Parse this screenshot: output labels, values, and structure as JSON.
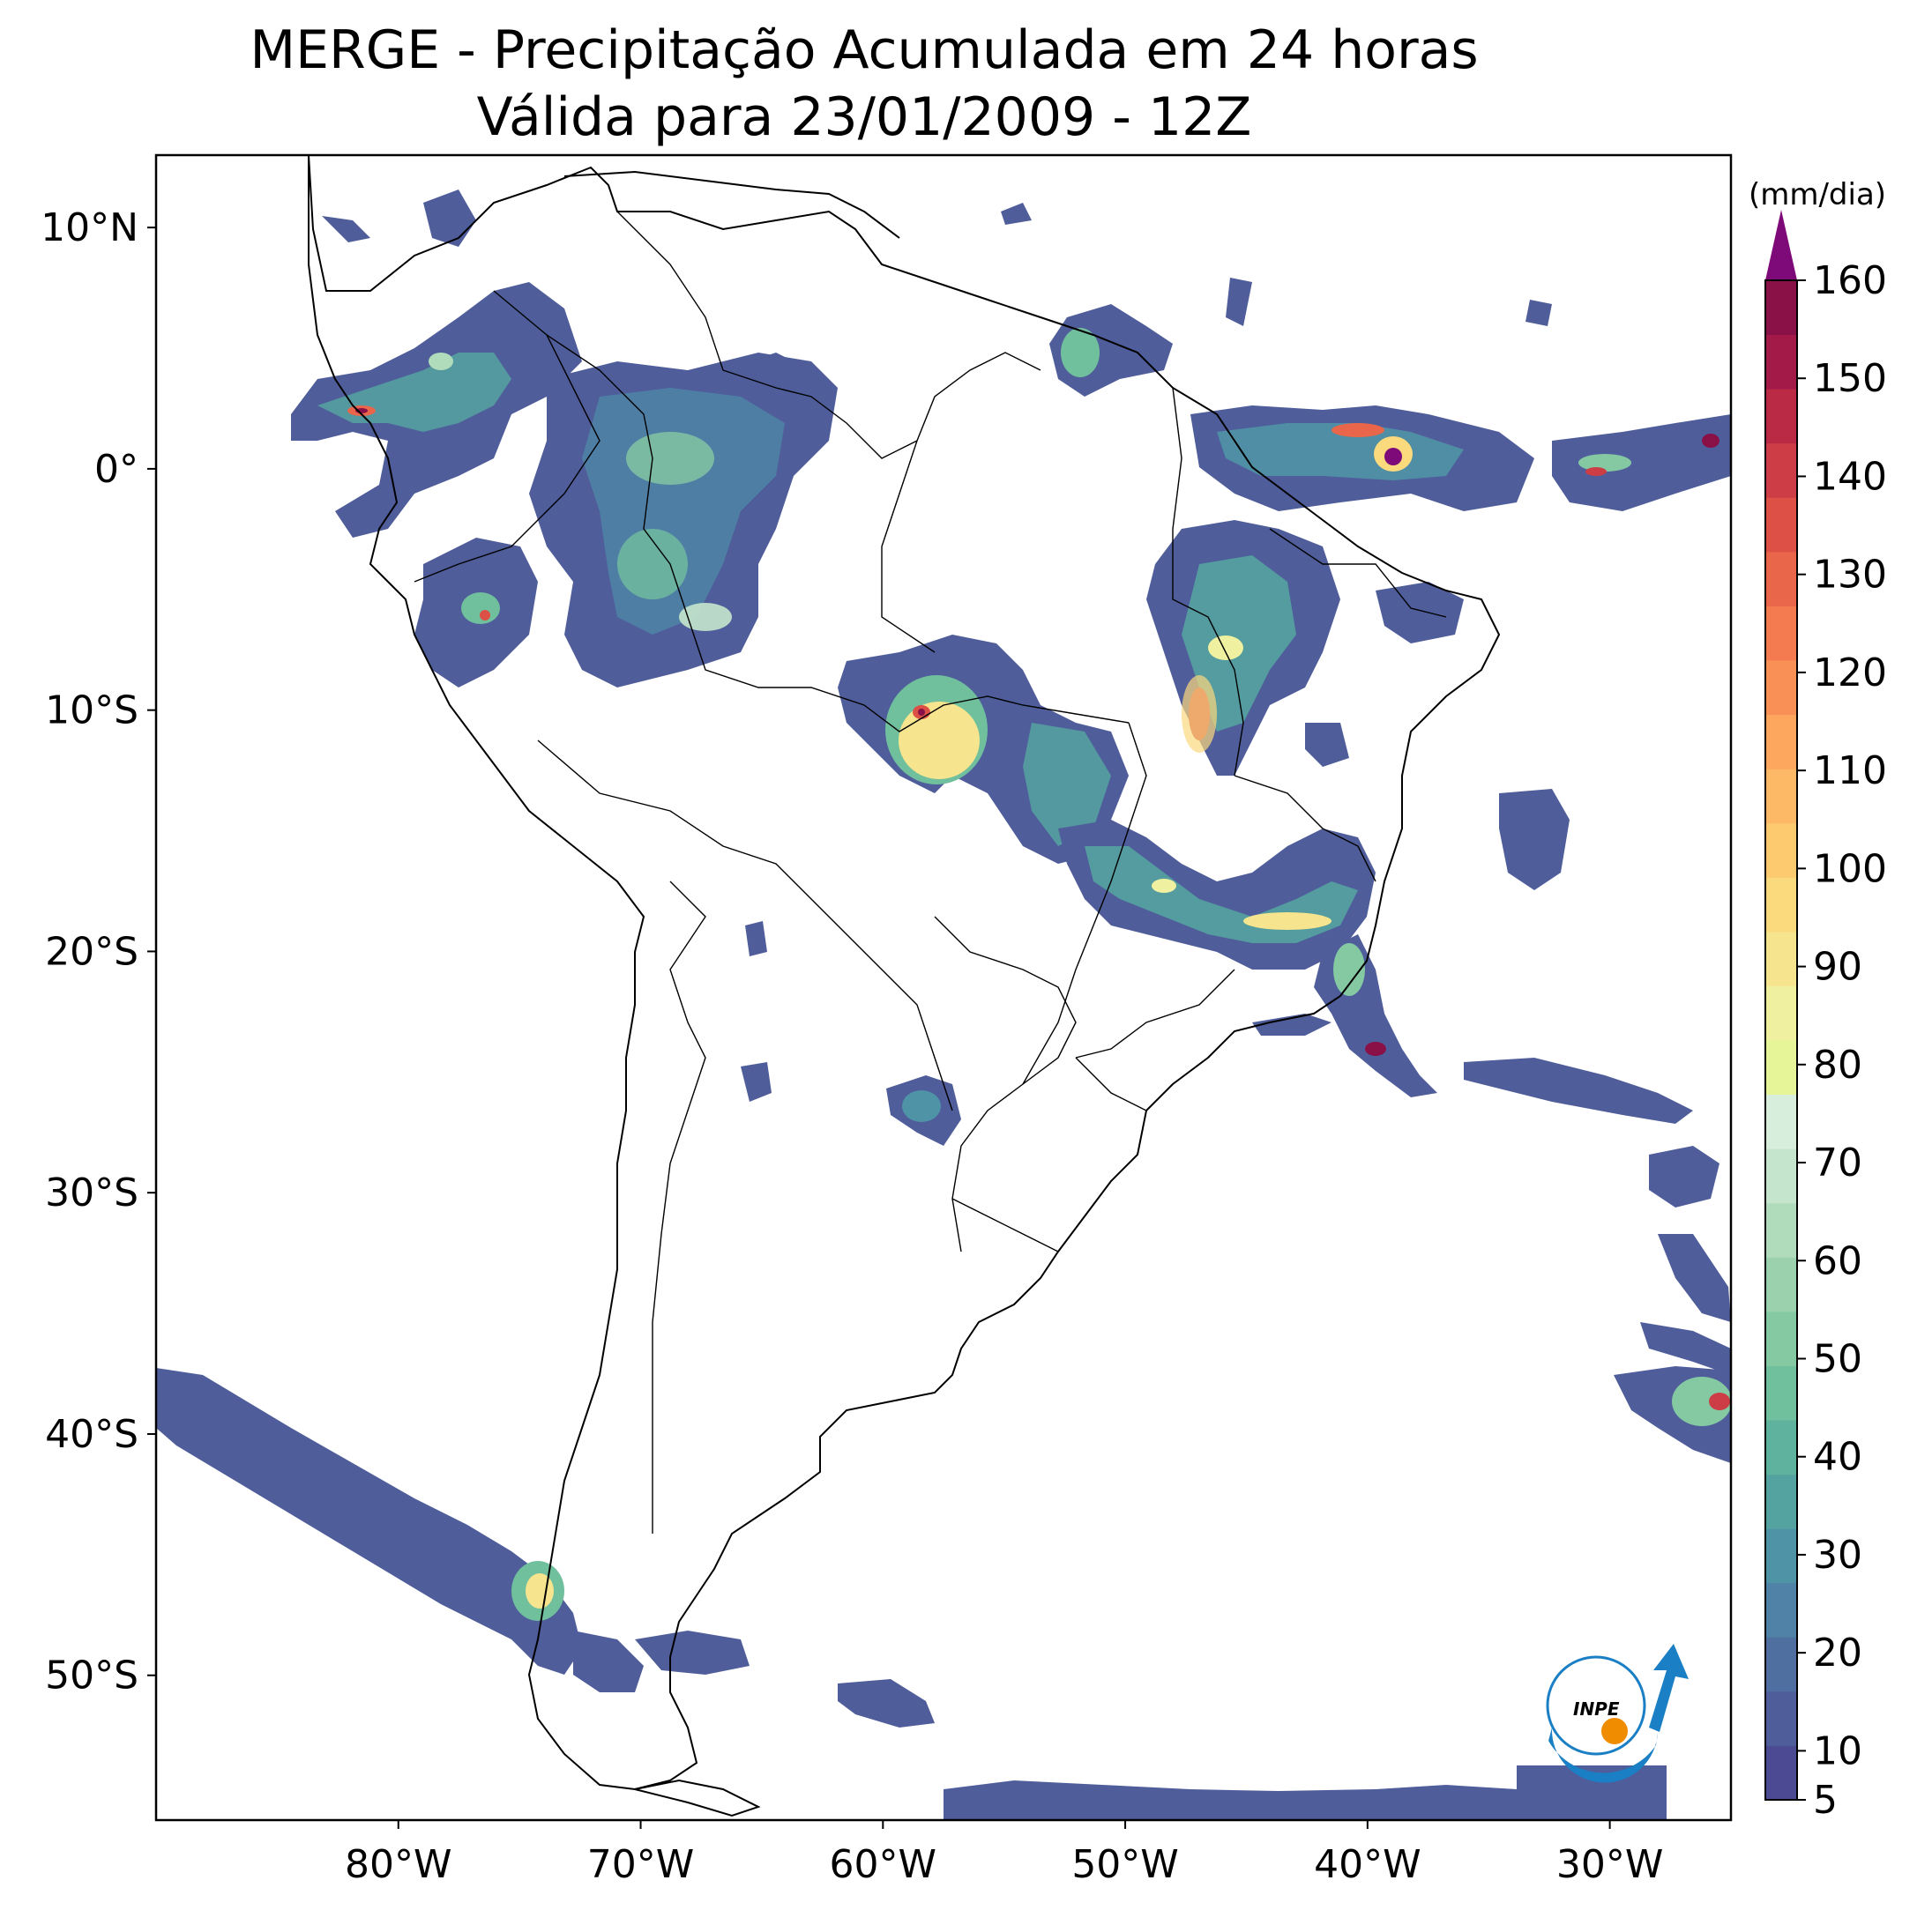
{
  "title_line1": "MERGE - Precipitação Acumulada em 24 horas",
  "title_line2": "Válida para 23/01/2009 - 12Z",
  "map": {
    "lon_range": [
      -90,
      -25
    ],
    "lat_range": [
      -56,
      13
    ],
    "lat_ticks": [
      {
        "value": 10,
        "label": "10°N"
      },
      {
        "value": 0,
        "label": "0°"
      },
      {
        "value": -10,
        "label": "10°S"
      },
      {
        "value": -20,
        "label": "20°S"
      },
      {
        "value": -30,
        "label": "30°S"
      },
      {
        "value": -40,
        "label": "40°S"
      },
      {
        "value": -50,
        "label": "50°S"
      }
    ],
    "lon_ticks": [
      {
        "value": -80,
        "label": "80°W"
      },
      {
        "value": -70,
        "label": "70°W"
      },
      {
        "value": -60,
        "label": "60°W"
      },
      {
        "value": -50,
        "label": "50°W"
      },
      {
        "value": -40,
        "label": "40°W"
      },
      {
        "value": -30,
        "label": "30°W"
      }
    ]
  },
  "colorbar": {
    "unit": "(mm/dia)",
    "min": 5,
    "max": 160,
    "extend": "max",
    "tick_labels": [
      "5",
      "10",
      "20",
      "30",
      "40",
      "50",
      "60",
      "70",
      "80",
      "90",
      "100",
      "110",
      "120",
      "130",
      "140",
      "150",
      "160"
    ],
    "tick_values": [
      5,
      10,
      20,
      30,
      40,
      50,
      60,
      70,
      80,
      90,
      100,
      110,
      120,
      130,
      140,
      150,
      160
    ],
    "colors": [
      "#4b4a92",
      "#4f5d9a",
      "#506fa1",
      "#4f82a6",
      "#4f93a6",
      "#55a3a1",
      "#5fb29d",
      "#70bf9d",
      "#85c9a3",
      "#9bd2ad",
      "#b0dcbc",
      "#c5e6cc",
      "#d8eedd",
      "#e6f598",
      "#eff1a0",
      "#f6e58e",
      "#fbd97d",
      "#fdca6f",
      "#fdb966",
      "#fca65e",
      "#f99157",
      "#f37b4f",
      "#e9664a",
      "#dc5046",
      "#cd3d45",
      "#bb2a45",
      "#a31a48",
      "#8a1048"
    ],
    "extend_color": "#7e0a7a"
  },
  "logo": {
    "text": "INPE",
    "ring_color": "#1a7fc4",
    "dot_color": "#f08c00"
  }
}
